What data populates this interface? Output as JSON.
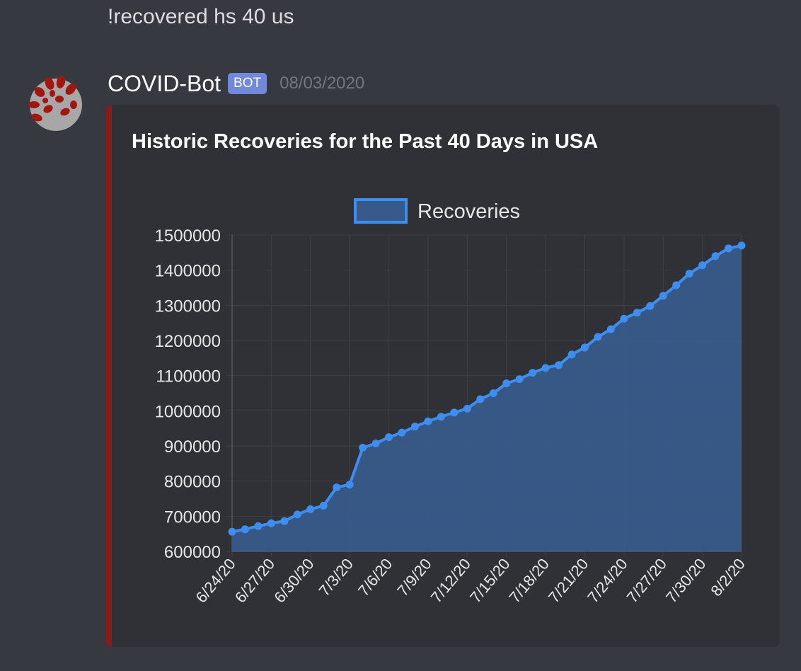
{
  "previous_message": "!recovered hs 40 us",
  "author": {
    "name": "COVID-Bot",
    "tag": "BOT",
    "timestamp": "08/03/2020",
    "avatar_icon": "virus-icon"
  },
  "embed": {
    "title": "Historic Recoveries for the Past 40 Days in USA",
    "bar_color": "#8b1a1a"
  },
  "chart_data": {
    "type": "area",
    "title": "",
    "xlabel": "",
    "ylabel": "",
    "legend": {
      "label": "Recoveries",
      "placement": "top-center"
    },
    "grid": true,
    "ylim": [
      600000,
      1500000
    ],
    "yticks": [
      600000,
      700000,
      800000,
      900000,
      1000000,
      1100000,
      1200000,
      1300000,
      1400000,
      1500000
    ],
    "xtick_labels": [
      "6/24/20",
      "6/27/20",
      "6/30/20",
      "7/3/20",
      "7/6/20",
      "7/9/20",
      "7/12/20",
      "7/15/20",
      "7/18/20",
      "7/21/20",
      "7/24/20",
      "7/27/20",
      "7/30/20",
      "8/2/20"
    ],
    "x": [
      "6/24/20",
      "6/25/20",
      "6/26/20",
      "6/27/20",
      "6/28/20",
      "6/29/20",
      "6/30/20",
      "7/1/20",
      "7/2/20",
      "7/3/20",
      "7/4/20",
      "7/5/20",
      "7/6/20",
      "7/7/20",
      "7/8/20",
      "7/9/20",
      "7/10/20",
      "7/11/20",
      "7/12/20",
      "7/13/20",
      "7/14/20",
      "7/15/20",
      "7/16/20",
      "7/17/20",
      "7/18/20",
      "7/19/20",
      "7/20/20",
      "7/21/20",
      "7/22/20",
      "7/23/20",
      "7/24/20",
      "7/25/20",
      "7/26/20",
      "7/27/20",
      "7/28/20",
      "7/29/20",
      "7/30/20",
      "7/31/20",
      "8/1/20",
      "8/2/20"
    ],
    "series": [
      {
        "name": "Recoveries",
        "color": "#3d8ef0",
        "fill": "#385a8a",
        "values": [
          656000,
          663000,
          672000,
          680000,
          686000,
          705000,
          720000,
          730000,
          782000,
          790000,
          895000,
          907000,
          925000,
          938000,
          955000,
          970000,
          983000,
          995000,
          1006000,
          1033000,
          1050000,
          1078000,
          1090000,
          1108000,
          1122000,
          1130000,
          1160000,
          1180000,
          1210000,
          1232000,
          1262000,
          1279000,
          1298000,
          1327000,
          1357000,
          1390000,
          1414000,
          1440000,
          1462000,
          1470000
        ]
      }
    ]
  }
}
